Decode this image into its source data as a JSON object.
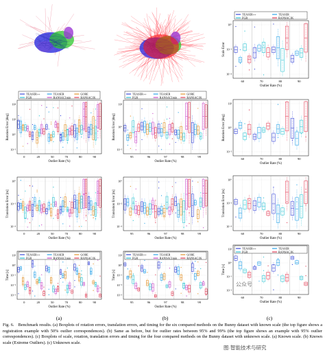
{
  "panel_labels": [
    "(a)",
    "(b)",
    "(c)"
  ],
  "columns": [
    {
      "id": "a",
      "x_label": "Outlier Rate (%)",
      "x_ticks": [
        "0",
        "20",
        "50",
        "70",
        "80",
        "90"
      ],
      "legend": [
        "TEASER++",
        "TEASER",
        "GORE",
        "FGR",
        "RANSAC1min",
        "RANSAC1K"
      ],
      "rows": [
        {
          "y_label": "Rotation Error [deg]",
          "y_ticks": [
            "10⁴",
            "10²",
            "10⁰",
            "10⁻²"
          ],
          "legend": true
        },
        {
          "y_label": "Translation Error [m]",
          "y_ticks": [
            "10⁰",
            "10⁻²",
            "10⁻⁴"
          ],
          "legend": false
        },
        {
          "y_label": "Time [s]",
          "y_ticks": [
            "10¹",
            "10⁰",
            "10⁻¹",
            "10⁻²",
            "10⁻³"
          ],
          "legend": true
        }
      ]
    },
    {
      "id": "b",
      "x_label": "Outlier Rate (%)",
      "x_ticks": [
        "95",
        "96",
        "97",
        "98",
        "99"
      ],
      "legend": [
        "TEASER++",
        "TEASER",
        "GORE",
        "FGR",
        "RANSAC1min",
        "RANSAC1K"
      ],
      "rows": [
        {
          "y_label": "Rotation Error [deg]",
          "y_ticks": [
            "10²",
            "10⁰",
            "10⁻²"
          ],
          "legend": true
        },
        {
          "y_label": "Translation Error [m]",
          "y_ticks": [
            "10⁰",
            "10⁻²",
            "10⁻⁴"
          ],
          "legend": false
        },
        {
          "y_label": "Time [s]",
          "y_ticks": [
            "10¹",
            "10⁰",
            "10⁻¹",
            "10⁻²",
            "10⁻³"
          ],
          "legend": true
        }
      ]
    },
    {
      "id": "c",
      "x_label": "Outlier Rate (%)",
      "x_ticks": [
        "60",
        "70",
        "80",
        "90"
      ],
      "legend": [
        "TEASER++",
        "TEASER",
        "FGR",
        "RANSAC1K"
      ],
      "rows": [
        {
          "y_label": "Scale Error",
          "y_ticks": [
            "10⁰",
            "10⁻²",
            "10⁻⁴"
          ],
          "legend": true
        },
        {
          "y_label": "Rotation Error [deg]",
          "y_ticks": [
            "10²",
            "10⁰",
            "10⁻²"
          ],
          "legend": false
        },
        {
          "y_label": "Translation Error [m]",
          "y_ticks": [
            "10⁰",
            "10⁻²",
            "10⁻⁴"
          ],
          "legend": false
        },
        {
          "y_label": "Time [s]",
          "y_ticks": [
            "10¹",
            "10⁰",
            "10⁻¹",
            "10⁻²"
          ],
          "legend": true
        }
      ]
    }
  ],
  "series_colors": {
    "TEASER++": "#2b3bd6",
    "TEASER": "#1a9ce6",
    "GORE": "#e08a1a",
    "FGR": "#20c0d0",
    "RANSAC1min": "#c640c6",
    "RANSAC1K": "#e0304a"
  },
  "caption": {
    "fig": "Fig. 6.",
    "text": "Benchmark results. (a) Boxplots of rotation errors, translation errors, and timing for the six compared methods on the Bunny dataset with known scale (the top figure shows a registration example with 50% outlier correspondences). (b) Same as before, but for outlier rates between 95% and 99% (the top figure shows an example with 95% outlier correspondences). (c) Boxplots of scale, rotation, translation errors and timing for the four compared methods on the Bunny dataset with unknown scale. (a) Known scale. (b) Known scale (Extreme Outliers). (c) Unknown scale."
  },
  "watermark": [
    "公众号",
    "图·智能技术与研究"
  ]
}
